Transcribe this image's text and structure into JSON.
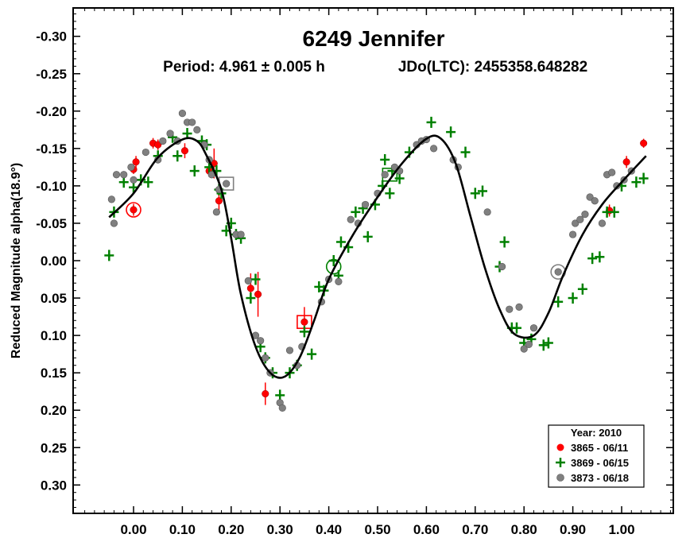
{
  "chart_data": {
    "type": "scatter",
    "title": "6249 Jennifer",
    "period_text": "Period: 4.961 ± 0.005 h",
    "epoch_text": "JDo(LTC): 2455358.648282",
    "ylabel": "Reduced Magnitude alpha(18.9°)",
    "xlabel": "",
    "xlim": [
      -0.1,
      1.1
    ],
    "ylim": [
      0.35,
      -0.35
    ],
    "y_inverted": true,
    "x_ticks": [
      0.0,
      0.1,
      0.2,
      0.3,
      0.4,
      0.5,
      0.6,
      0.7,
      0.8,
      0.9,
      1.0
    ],
    "x_tick_labels": [
      "0.00",
      "0.10",
      "0.20",
      "0.30",
      "0.40",
      "0.50",
      "0.60",
      "0.70",
      "0.80",
      "0.90",
      "1.00"
    ],
    "y_ticks": [
      -0.3,
      -0.25,
      -0.2,
      -0.15,
      -0.1,
      -0.05,
      0.0,
      0.05,
      0.1,
      0.15,
      0.2,
      0.25,
      0.3
    ],
    "y_tick_labels": [
      "-0.30",
      "-0.25",
      "-0.20",
      "-0.15",
      "-0.10",
      "-0.05",
      "0.00",
      "0.05",
      "0.10",
      "0.15",
      "0.20",
      "0.25",
      "0.30"
    ],
    "legend": {
      "placement": "bottom-right",
      "title": "Year: 2010",
      "entries": [
        "3865 - 06/11",
        "3869 - 06/15",
        "3873 - 06/18"
      ]
    },
    "fit_curve": {
      "color": "#000000",
      "x": [
        -0.05,
        0.0,
        0.05,
        0.1,
        0.13,
        0.15,
        0.18,
        0.2,
        0.22,
        0.25,
        0.28,
        0.31,
        0.34,
        0.37,
        0.4,
        0.45,
        0.5,
        0.55,
        0.6,
        0.63,
        0.66,
        0.69,
        0.72,
        0.75,
        0.78,
        0.82,
        0.85,
        0.88,
        0.92,
        0.96,
        1.0,
        1.05
      ],
      "y": [
        -0.058,
        -0.09,
        -0.138,
        -0.162,
        -0.16,
        -0.14,
        -0.095,
        -0.03,
        0.045,
        0.115,
        0.15,
        0.155,
        0.13,
        0.08,
        0.025,
        -0.035,
        -0.085,
        -0.13,
        -0.163,
        -0.163,
        -0.13,
        -0.06,
        0.01,
        0.065,
        0.098,
        0.1,
        0.07,
        0.02,
        -0.035,
        -0.075,
        -0.105,
        -0.14
      ]
    },
    "series": [
      {
        "name": "3865 - 06/11",
        "color": "#ff0000",
        "marker": "dot-errorbar",
        "points": [
          {
            "x": 0.0,
            "y": -0.068,
            "err": 0.008
          },
          {
            "x": 0.0,
            "y": -0.122,
            "err": 0.006
          },
          {
            "x": 0.005,
            "y": -0.132,
            "err": 0.008
          },
          {
            "x": 0.04,
            "y": -0.157,
            "err": 0.007
          },
          {
            "x": 0.05,
            "y": -0.155,
            "err": 0.007
          },
          {
            "x": 0.105,
            "y": -0.147,
            "err": 0.01
          },
          {
            "x": 0.155,
            "y": -0.12,
            "err": 0.008
          },
          {
            "x": 0.165,
            "y": -0.13,
            "err": 0.02
          },
          {
            "x": 0.175,
            "y": -0.08,
            "err": 0.015
          },
          {
            "x": 0.24,
            "y": 0.037,
            "err": 0.02
          },
          {
            "x": 0.255,
            "y": 0.045,
            "err": 0.03
          },
          {
            "x": 0.27,
            "y": 0.178,
            "err": 0.015
          },
          {
            "x": 0.35,
            "y": 0.082,
            "err": 0.02
          },
          {
            "x": 0.975,
            "y": -0.067,
            "err": 0.008
          },
          {
            "x": 1.01,
            "y": -0.132,
            "err": 0.008
          },
          {
            "x": 1.045,
            "y": -0.157,
            "err": 0.006
          }
        ],
        "highlight": [
          {
            "x": 0.0,
            "y": -0.068,
            "shape": "circle"
          },
          {
            "x": 0.35,
            "y": 0.082,
            "shape": "square"
          }
        ]
      },
      {
        "name": "3869 - 06/15",
        "color": "#008000",
        "marker": "cross",
        "points": [
          {
            "x": -0.05,
            "y": -0.007
          },
          {
            "x": -0.04,
            "y": -0.065
          },
          {
            "x": -0.02,
            "y": -0.105
          },
          {
            "x": 0.0,
            "y": -0.098
          },
          {
            "x": 0.015,
            "y": -0.108
          },
          {
            "x": 0.03,
            "y": -0.105
          },
          {
            "x": 0.05,
            "y": -0.14
          },
          {
            "x": 0.08,
            "y": -0.165
          },
          {
            "x": 0.09,
            "y": -0.14
          },
          {
            "x": 0.11,
            "y": -0.17
          },
          {
            "x": 0.125,
            "y": -0.12
          },
          {
            "x": 0.14,
            "y": -0.16
          },
          {
            "x": 0.15,
            "y": -0.155
          },
          {
            "x": 0.155,
            "y": -0.125
          },
          {
            "x": 0.17,
            "y": -0.12
          },
          {
            "x": 0.175,
            "y": -0.095
          },
          {
            "x": 0.18,
            "y": -0.09
          },
          {
            "x": 0.19,
            "y": -0.04
          },
          {
            "x": 0.2,
            "y": -0.05
          },
          {
            "x": 0.21,
            "y": -0.035
          },
          {
            "x": 0.22,
            "y": -0.03
          },
          {
            "x": 0.24,
            "y": 0.05
          },
          {
            "x": 0.25,
            "y": 0.025
          },
          {
            "x": 0.26,
            "y": 0.115
          },
          {
            "x": 0.27,
            "y": 0.13
          },
          {
            "x": 0.285,
            "y": 0.15
          },
          {
            "x": 0.3,
            "y": 0.18
          },
          {
            "x": 0.32,
            "y": 0.15
          },
          {
            "x": 0.335,
            "y": 0.14
          },
          {
            "x": 0.35,
            "y": 0.095
          },
          {
            "x": 0.365,
            "y": 0.125
          },
          {
            "x": 0.38,
            "y": 0.035
          },
          {
            "x": 0.39,
            "y": 0.04
          },
          {
            "x": 0.41,
            "y": 0.0
          },
          {
            "x": 0.42,
            "y": 0.02
          },
          {
            "x": 0.425,
            "y": -0.025
          },
          {
            "x": 0.44,
            "y": -0.018
          },
          {
            "x": 0.455,
            "y": -0.065
          },
          {
            "x": 0.47,
            "y": -0.07
          },
          {
            "x": 0.48,
            "y": -0.032
          },
          {
            "x": 0.495,
            "y": -0.075
          },
          {
            "x": 0.51,
            "y": -0.1
          },
          {
            "x": 0.515,
            "y": -0.135
          },
          {
            "x": 0.525,
            "y": -0.09
          },
          {
            "x": 0.53,
            "y": -0.12
          },
          {
            "x": 0.545,
            "y": -0.11
          },
          {
            "x": 0.565,
            "y": -0.145
          },
          {
            "x": 0.61,
            "y": -0.185
          },
          {
            "x": 0.65,
            "y": -0.172
          },
          {
            "x": 0.68,
            "y": -0.145
          },
          {
            "x": 0.7,
            "y": -0.09
          },
          {
            "x": 0.715,
            "y": -0.093
          },
          {
            "x": 0.75,
            "y": 0.008
          },
          {
            "x": 0.76,
            "y": -0.025
          },
          {
            "x": 0.775,
            "y": 0.09
          },
          {
            "x": 0.785,
            "y": 0.09
          },
          {
            "x": 0.8,
            "y": 0.11
          },
          {
            "x": 0.815,
            "y": 0.105
          },
          {
            "x": 0.84,
            "y": 0.113
          },
          {
            "x": 0.85,
            "y": 0.11
          },
          {
            "x": 0.87,
            "y": 0.055
          },
          {
            "x": 0.9,
            "y": 0.05
          },
          {
            "x": 0.92,
            "y": 0.038
          },
          {
            "x": 0.94,
            "y": -0.003
          },
          {
            "x": 0.955,
            "y": -0.005
          },
          {
            "x": 0.97,
            "y": -0.065
          },
          {
            "x": 0.985,
            "y": -0.065
          },
          {
            "x": 1.0,
            "y": -0.1
          },
          {
            "x": 1.03,
            "y": -0.105
          },
          {
            "x": 1.045,
            "y": -0.11
          }
        ],
        "highlight": [
          {
            "x": 0.41,
            "y": 0.008,
            "shape": "circle"
          },
          {
            "x": 0.525,
            "y": -0.115,
            "shape": "square"
          }
        ]
      },
      {
        "name": "3873 - 06/18",
        "color": "#808080",
        "marker": "dot",
        "points": [
          {
            "x": -0.045,
            "y": -0.082
          },
          {
            "x": -0.04,
            "y": -0.05
          },
          {
            "x": -0.035,
            "y": -0.115
          },
          {
            "x": -0.02,
            "y": -0.115
          },
          {
            "x": -0.005,
            "y": -0.125
          },
          {
            "x": 0.0,
            "y": -0.108
          },
          {
            "x": 0.025,
            "y": -0.145
          },
          {
            "x": 0.05,
            "y": -0.135
          },
          {
            "x": 0.06,
            "y": -0.16
          },
          {
            "x": 0.075,
            "y": -0.17
          },
          {
            "x": 0.09,
            "y": -0.16
          },
          {
            "x": 0.1,
            "y": -0.197
          },
          {
            "x": 0.11,
            "y": -0.185
          },
          {
            "x": 0.12,
            "y": -0.185
          },
          {
            "x": 0.13,
            "y": -0.175
          },
          {
            "x": 0.145,
            "y": -0.155
          },
          {
            "x": 0.155,
            "y": -0.135
          },
          {
            "x": 0.16,
            "y": -0.115
          },
          {
            "x": 0.17,
            "y": -0.065
          },
          {
            "x": 0.175,
            "y": -0.095
          },
          {
            "x": 0.19,
            "y": -0.103
          },
          {
            "x": 0.21,
            "y": -0.035
          },
          {
            "x": 0.22,
            "y": -0.035
          },
          {
            "x": 0.235,
            "y": 0.027
          },
          {
            "x": 0.25,
            "y": 0.1
          },
          {
            "x": 0.26,
            "y": 0.107
          },
          {
            "x": 0.27,
            "y": 0.13
          },
          {
            "x": 0.28,
            "y": 0.15
          },
          {
            "x": 0.3,
            "y": 0.19
          },
          {
            "x": 0.305,
            "y": 0.197
          },
          {
            "x": 0.32,
            "y": 0.12
          },
          {
            "x": 0.335,
            "y": 0.14
          },
          {
            "x": 0.345,
            "y": 0.115
          },
          {
            "x": 0.385,
            "y": 0.055
          },
          {
            "x": 0.4,
            "y": 0.025
          },
          {
            "x": 0.42,
            "y": 0.028
          },
          {
            "x": 0.445,
            "y": -0.055
          },
          {
            "x": 0.46,
            "y": -0.05
          },
          {
            "x": 0.475,
            "y": -0.075
          },
          {
            "x": 0.5,
            "y": -0.09
          },
          {
            "x": 0.515,
            "y": -0.115
          },
          {
            "x": 0.535,
            "y": -0.125
          },
          {
            "x": 0.545,
            "y": -0.12
          },
          {
            "x": 0.58,
            "y": -0.155
          },
          {
            "x": 0.59,
            "y": -0.16
          },
          {
            "x": 0.6,
            "y": -0.162
          },
          {
            "x": 0.615,
            "y": -0.15
          },
          {
            "x": 0.655,
            "y": -0.135
          },
          {
            "x": 0.665,
            "y": -0.125
          },
          {
            "x": 0.725,
            "y": -0.065
          },
          {
            "x": 0.755,
            "y": 0.008
          },
          {
            "x": 0.77,
            "y": 0.065
          },
          {
            "x": 0.79,
            "y": 0.062
          },
          {
            "x": 0.8,
            "y": 0.118
          },
          {
            "x": 0.81,
            "y": 0.112
          },
          {
            "x": 0.82,
            "y": 0.09
          },
          {
            "x": 0.87,
            "y": 0.015
          },
          {
            "x": 0.9,
            "y": -0.035
          },
          {
            "x": 0.905,
            "y": -0.05
          },
          {
            "x": 0.915,
            "y": -0.055
          },
          {
            "x": 0.925,
            "y": -0.062
          },
          {
            "x": 0.935,
            "y": -0.085
          },
          {
            "x": 0.945,
            "y": -0.08
          },
          {
            "x": 0.96,
            "y": -0.05
          },
          {
            "x": 0.97,
            "y": -0.115
          },
          {
            "x": 0.98,
            "y": -0.118
          },
          {
            "x": 0.99,
            "y": -0.1
          },
          {
            "x": 1.005,
            "y": -0.108
          },
          {
            "x": 1.02,
            "y": -0.12
          }
        ],
        "highlight": [
          {
            "x": 0.87,
            "y": 0.015,
            "shape": "circle"
          },
          {
            "x": 0.19,
            "y": -0.103,
            "shape": "square"
          }
        ]
      }
    ]
  }
}
